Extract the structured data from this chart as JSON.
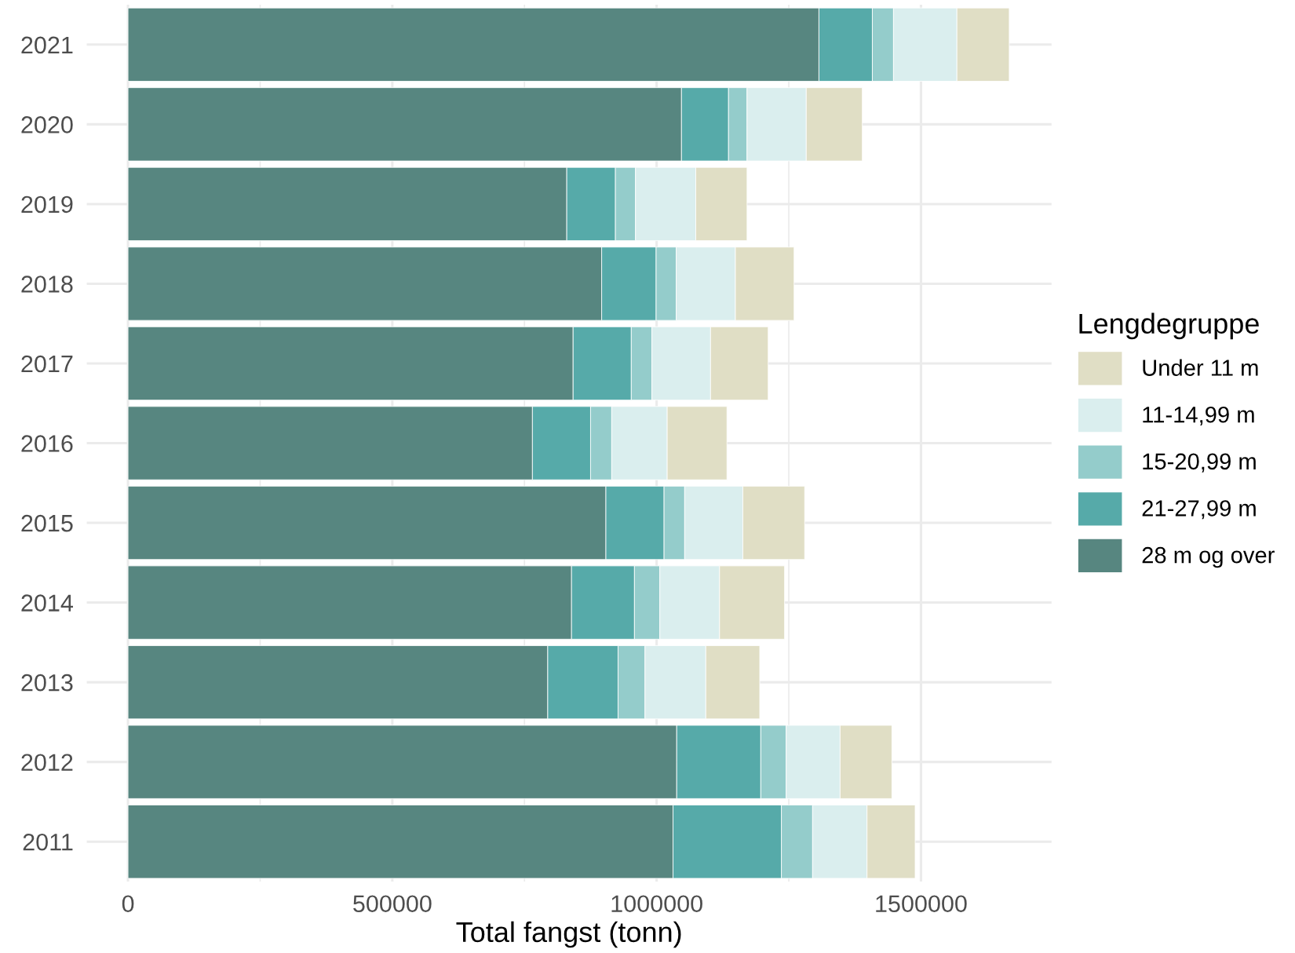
{
  "chart_data": {
    "type": "bar",
    "orientation": "horizontal",
    "stacked": true,
    "xlabel": "Total fangst (tonn)",
    "legend_title": "Lengdegruppe",
    "legend": "right",
    "grid": true,
    "categories": [
      "2021",
      "2020",
      "2019",
      "2018",
      "2017",
      "2016",
      "2015",
      "2014",
      "2013",
      "2012",
      "2011"
    ],
    "series": [
      {
        "name": "28 m og over",
        "color": "#578680",
        "values": [
          1307000,
          1047000,
          830000,
          896000,
          842000,
          765000,
          904000,
          839000,
          794000,
          1038000,
          1031000
        ]
      },
      {
        "name": "21-27,99 m",
        "color": "#56aaa9",
        "values": [
          101000,
          89000,
          92000,
          103000,
          110000,
          110000,
          110000,
          119000,
          133000,
          159000,
          205000
        ]
      },
      {
        "name": "15-20,99 m",
        "color": "#94cccb",
        "values": [
          40000,
          35000,
          38000,
          38000,
          39000,
          40000,
          39000,
          48000,
          51000,
          48000,
          59000
        ]
      },
      {
        "name": "11-14,99 m",
        "color": "#daeeee",
        "values": [
          120000,
          112000,
          114000,
          112000,
          111000,
          105000,
          110000,
          113000,
          115000,
          102000,
          103000
        ]
      },
      {
        "name": "Under 11 m",
        "color": "#e0dec5",
        "values": [
          99000,
          106000,
          97000,
          111000,
          109000,
          113000,
          117000,
          123000,
          102000,
          98000,
          91000
        ]
      }
    ],
    "xlim": [
      -78000,
      1747000
    ],
    "xticks": [
      0,
      {
        "value": 250000,
        "label": null
      },
      500000,
      {
        "value": 750000,
        "label": null
      },
      1000000,
      {
        "value": 1250000,
        "label": null
      },
      1500000
    ]
  }
}
